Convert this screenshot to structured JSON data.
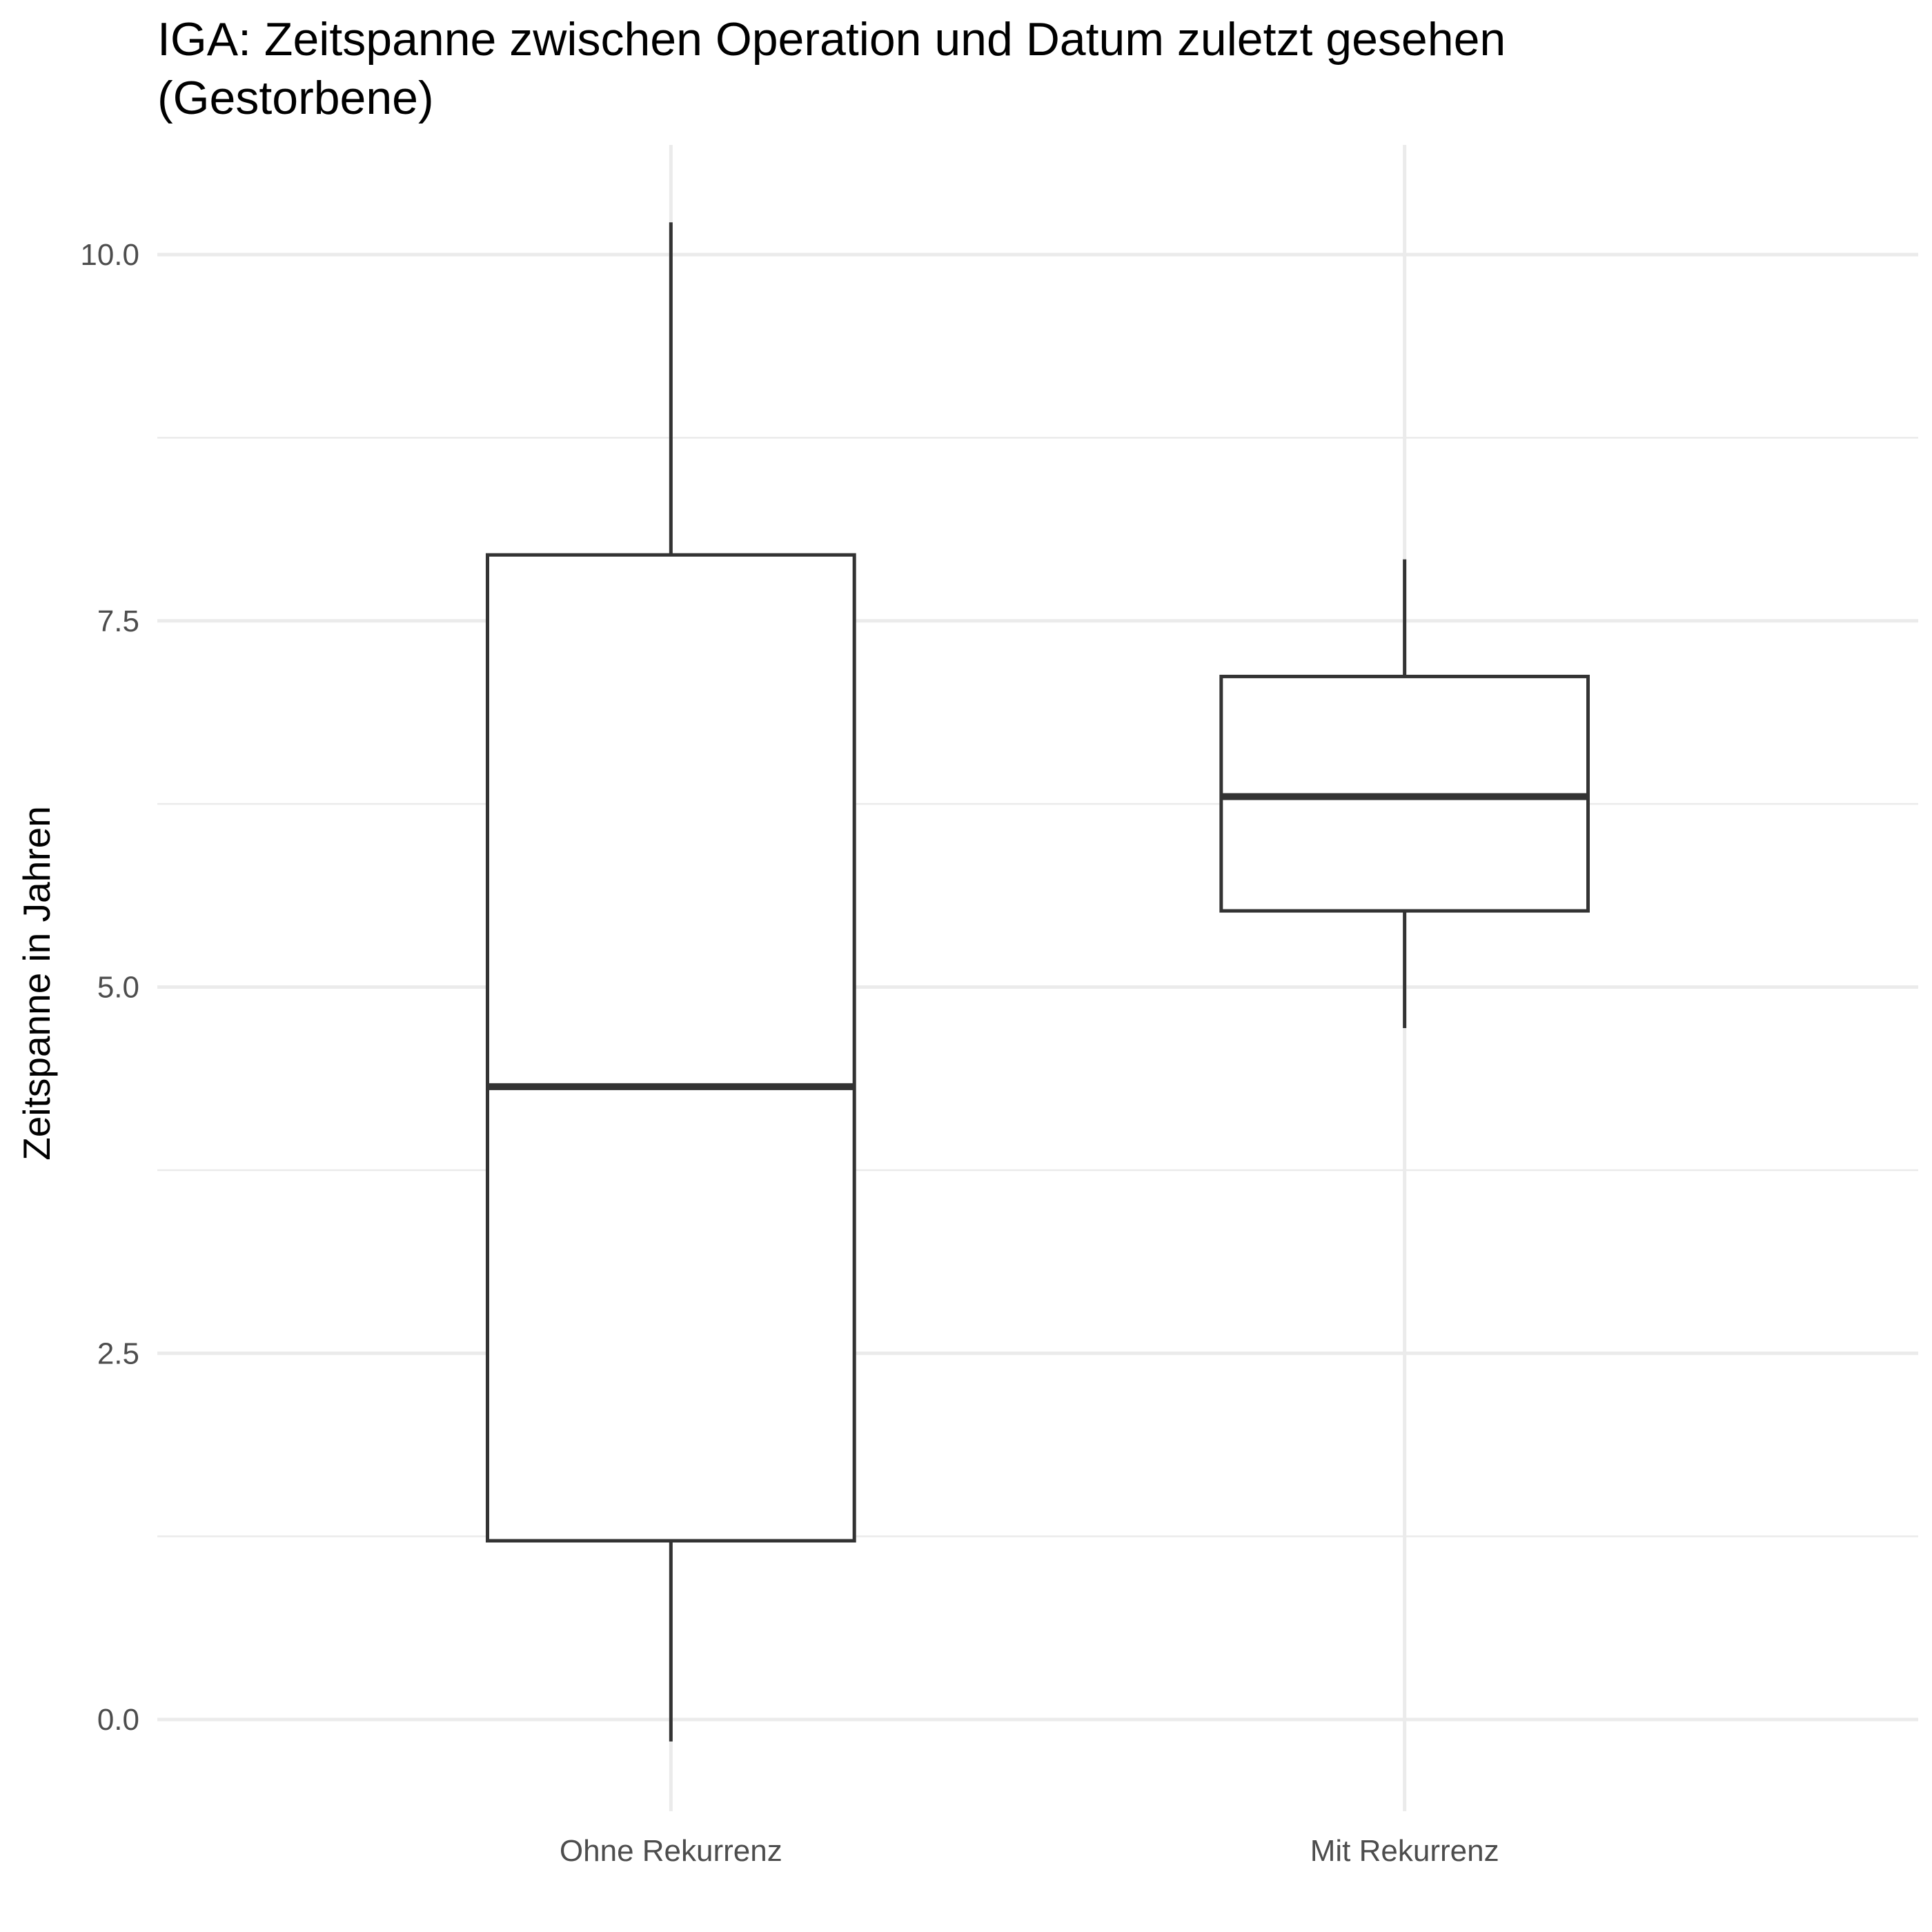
{
  "chart_data": {
    "type": "boxplot",
    "title_lines": [
      "IGA: Zeitspanne zwischen Operation und Datum zuletzt gesehen",
      "(Gestorbene)"
    ],
    "xlabel": "",
    "ylabel": "Zeitspanne in Jahren",
    "categories": [
      "Ohne Rekurrenz",
      "Mit Rekurrenz"
    ],
    "ylim": [
      -0.6,
      10.7
    ],
    "yticks": [
      0.0,
      2.5,
      5.0,
      7.5,
      10.0
    ],
    "ytick_labels": [
      "0.0",
      "2.5",
      "5.0",
      "7.5",
      "10.0"
    ],
    "grid": true,
    "boxes": [
      {
        "category": "Ohne Rekurrenz",
        "whisker_low": -0.15,
        "q1": 1.22,
        "median": 4.32,
        "q3": 7.95,
        "whisker_high": 10.22
      },
      {
        "category": "Mit Rekurrenz",
        "whisker_low": 4.72,
        "q1": 5.52,
        "median": 6.3,
        "q3": 7.12,
        "whisker_high": 7.92
      }
    ],
    "colors": {
      "box_line": "#333333",
      "box_fill": "#ffffff",
      "grid": "#ebebeb",
      "tick_label": "#4d4d4d"
    }
  }
}
